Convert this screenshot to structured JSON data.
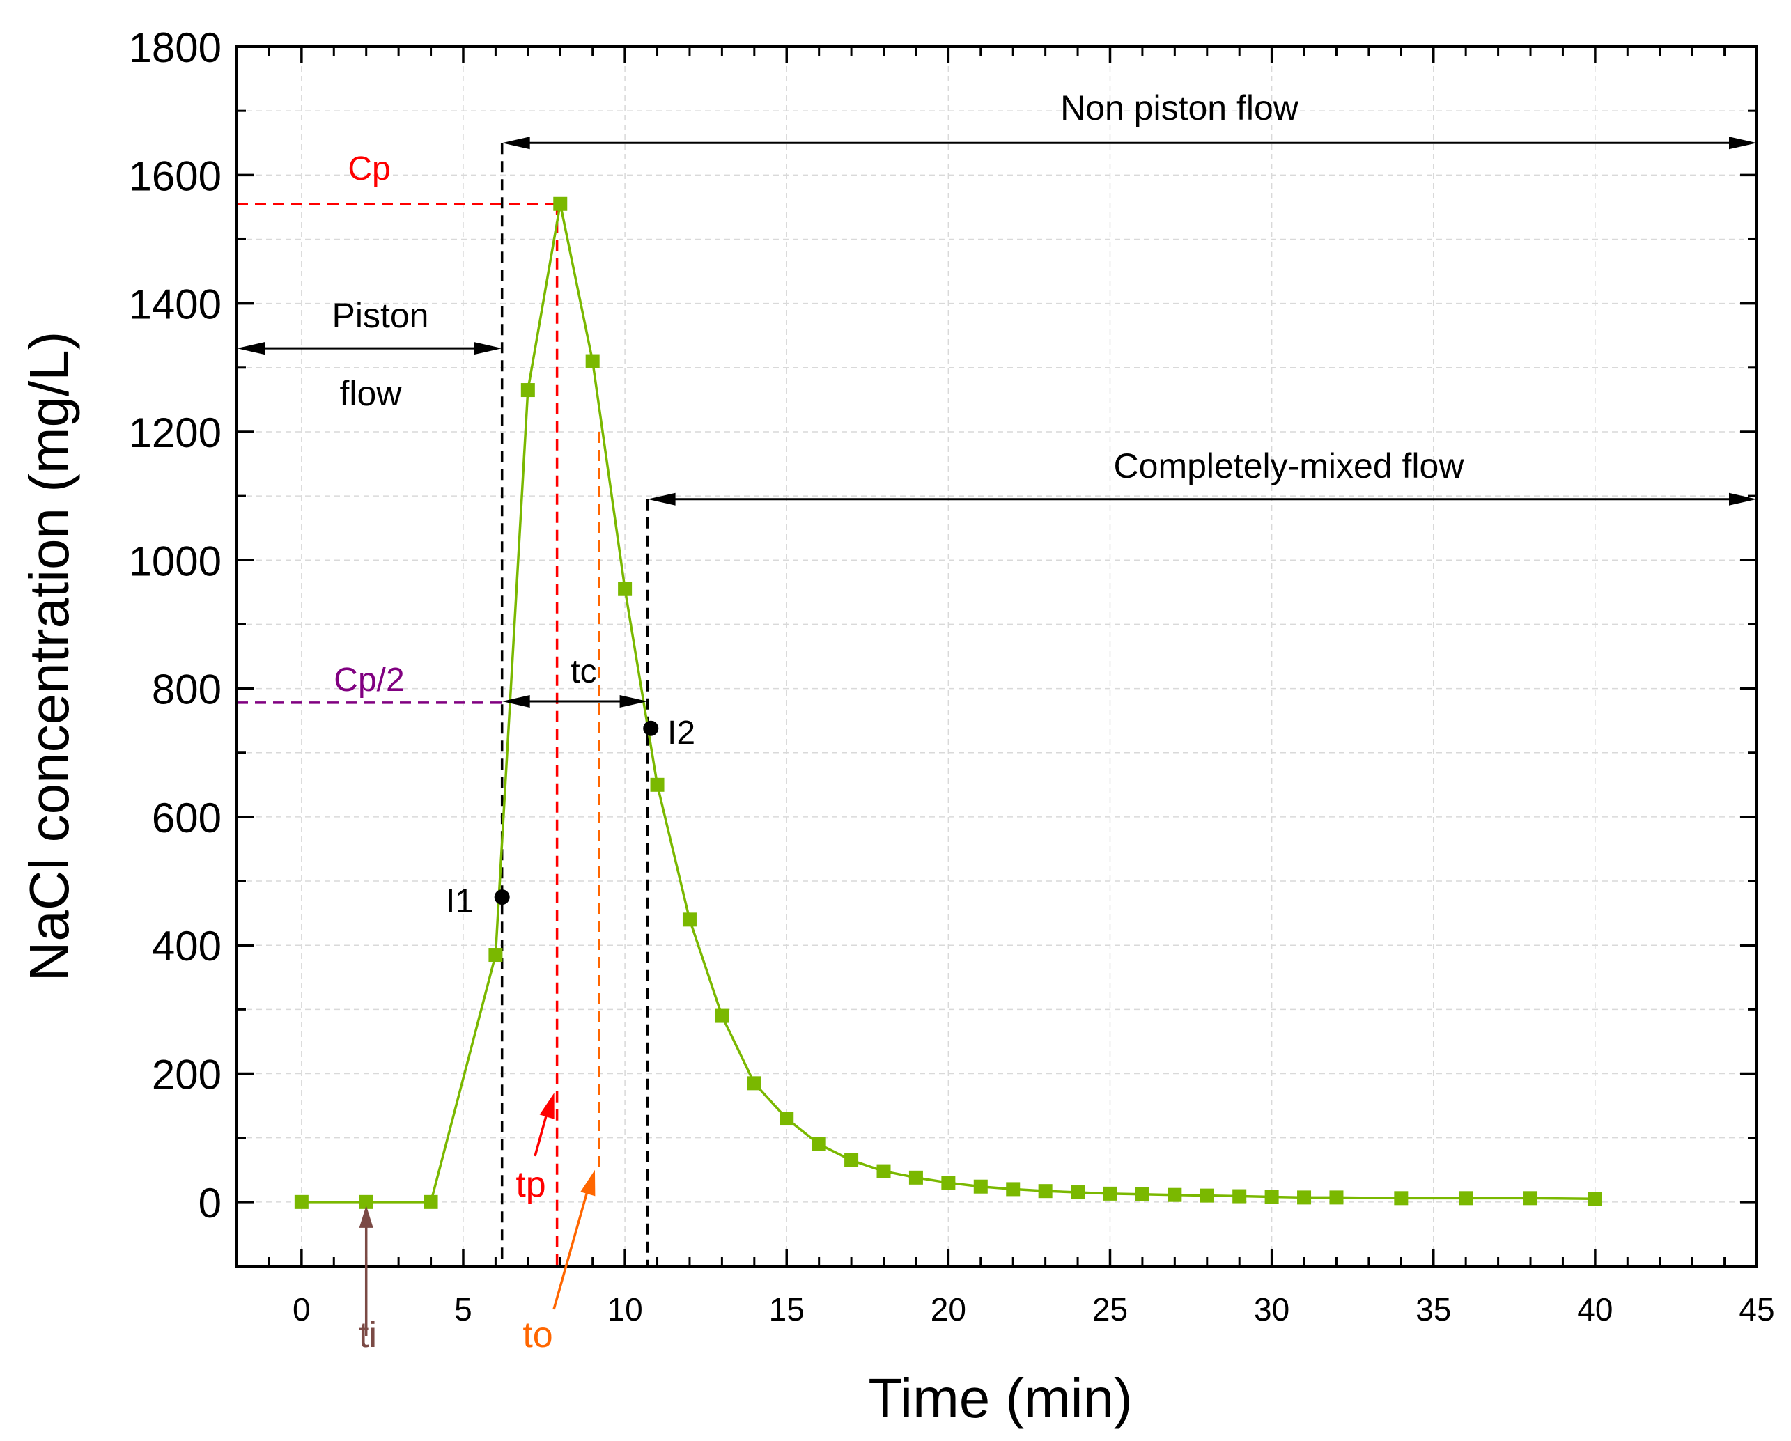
{
  "chart_data": {
    "type": "line",
    "title": "",
    "xlabel": "Time (min)",
    "ylabel": "NaCl concentration (mg/L)",
    "xlim": [
      -2,
      45
    ],
    "ylim": [
      -100,
      1800
    ],
    "xticks": [
      0,
      5,
      10,
      15,
      20,
      25,
      30,
      35,
      40,
      45
    ],
    "yticks": [
      0,
      200,
      400,
      600,
      800,
      1000,
      1200,
      1400,
      1600,
      1800
    ],
    "grid": true,
    "series": [
      {
        "name": "NaCl concentration",
        "color": "#7ab800",
        "marker": "square",
        "x": [
          0,
          2,
          4,
          6,
          7,
          8,
          9,
          10,
          11,
          12,
          13,
          14,
          15,
          16,
          17,
          18,
          19,
          20,
          21,
          22,
          23,
          24,
          25,
          26,
          27,
          28,
          29,
          30,
          31,
          32,
          34,
          36,
          38,
          40
        ],
        "y": [
          0,
          0,
          0,
          385,
          1265,
          1555,
          1310,
          955,
          650,
          440,
          290,
          185,
          130,
          90,
          65,
          48,
          38,
          30,
          24,
          20,
          17,
          15,
          13,
          12,
          11,
          10,
          9,
          8,
          7,
          7,
          6,
          6,
          6,
          5
        ]
      }
    ],
    "points": [
      {
        "label": "I1",
        "x": 6.2,
        "y": 475,
        "color": "#000000"
      },
      {
        "label": "I2",
        "x": 10.8,
        "y": 738,
        "color": "#000000"
      }
    ],
    "reference_lines": {
      "cp_level": 1555,
      "cp_half_level": 778,
      "ti_x": 2,
      "tp_x": 7.9,
      "to_x": 9.2,
      "t_i1_x": 6.2,
      "t_i2_x": 10.7
    },
    "annotations": {
      "cp": {
        "text": "Cp",
        "color": "#ff0000"
      },
      "cp_half": {
        "text": "Cp/2",
        "color": "#800080"
      },
      "tc": {
        "text": "tc",
        "color": "#000000"
      },
      "piston_line1": {
        "text": "Piston",
        "color": "#000000"
      },
      "piston_line2": {
        "text": "flow",
        "color": "#000000"
      },
      "non_piston": {
        "text": "Non piston flow",
        "color": "#000000",
        "y": 1650
      },
      "completely_mixed": {
        "text": "Completely-mixed flow",
        "color": "#000000",
        "y": 1095
      },
      "piston_arrow_y": 1330,
      "tc_arrow_y": 780,
      "ti": {
        "text": "ti",
        "color": "#7b4a45"
      },
      "tp": {
        "text": "tp",
        "color": "#ff0000"
      },
      "to": {
        "text": "to",
        "color": "#ff6600"
      }
    }
  }
}
